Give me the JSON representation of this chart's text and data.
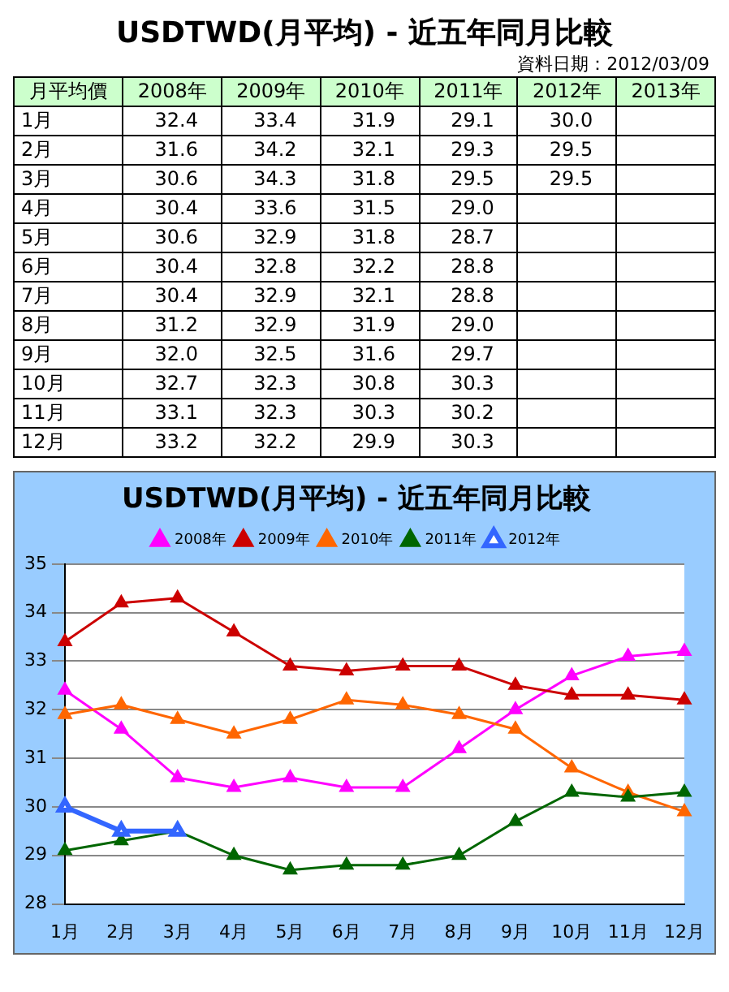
{
  "chart_data": [
    {
      "type": "heatmap",
      "title": "USDTWD(月平均) - 近五年同月比較",
      "subtitle": "資料日期：2012/03/09",
      "ylabel": "月平均價",
      "data_labels": true,
      "categories": [
        "2008年",
        "2009年",
        "2010年",
        "2011年",
        "2012年",
        "2013年"
      ],
      "y_categories": [
        "1月",
        "2月",
        "3月",
        "4月",
        "5月",
        "6月",
        "7月",
        "8月",
        "9月",
        "10月",
        "11月",
        "12月"
      ],
      "cells": [
        [
          32.4,
          33.4,
          31.9,
          29.1,
          30.0,
          null
        ],
        [
          31.6,
          34.2,
          32.1,
          29.3,
          29.5,
          null
        ],
        [
          30.6,
          34.3,
          31.8,
          29.5,
          29.5,
          null
        ],
        [
          30.4,
          33.6,
          31.5,
          29.0,
          null,
          null
        ],
        [
          30.6,
          32.9,
          31.8,
          28.7,
          null,
          null
        ],
        [
          30.4,
          32.8,
          32.2,
          28.8,
          null,
          null
        ],
        [
          30.4,
          32.9,
          32.1,
          28.8,
          null,
          null
        ],
        [
          31.2,
          32.9,
          31.9,
          29.0,
          null,
          null
        ],
        [
          32.0,
          32.5,
          31.6,
          29.7,
          null,
          null
        ],
        [
          32.7,
          32.3,
          30.8,
          30.3,
          null,
          null
        ],
        [
          33.1,
          32.3,
          30.3,
          30.2,
          null,
          null
        ],
        [
          33.2,
          32.2,
          29.9,
          30.3,
          null,
          null
        ]
      ],
      "cell_labels": [
        [
          "32.4",
          "33.4",
          "31.9",
          "29.1",
          "30.0",
          null
        ],
        [
          "31.6",
          "34.2",
          "32.1",
          "29.3",
          "29.5",
          null
        ],
        [
          "30.6",
          "34.3",
          "31.8",
          "29.5",
          "29.5",
          null
        ],
        [
          "30.4",
          "33.6",
          "31.5",
          "29.0",
          null,
          null
        ],
        [
          "30.6",
          "32.9",
          "31.8",
          "28.7",
          null,
          null
        ],
        [
          "30.4",
          "32.8",
          "32.2",
          "28.8",
          null,
          null
        ],
        [
          "30.4",
          "32.9",
          "32.1",
          "28.8",
          null,
          null
        ],
        [
          "31.2",
          "32.9",
          "31.9",
          "29.0",
          null,
          null
        ],
        [
          "32.0",
          "32.5",
          "31.6",
          "29.7",
          null,
          null
        ],
        [
          "32.7",
          "32.3",
          "30.8",
          "30.3",
          null,
          null
        ],
        [
          "33.1",
          "32.3",
          "30.3",
          "30.2",
          null,
          null
        ],
        [
          "33.2",
          "32.2",
          "29.9",
          "30.3",
          null,
          null
        ]
      ]
    },
    {
      "type": "line",
      "title": "USDTWD(月平均) - 近五年同月比較",
      "categories": [
        "1月",
        "2月",
        "3月",
        "4月",
        "5月",
        "6月",
        "7月",
        "8月",
        "9月",
        "10月",
        "11月",
        "12月"
      ],
      "series": [
        {
          "name": "2008年",
          "color": "#ff00ff",
          "values": [
            32.4,
            31.6,
            30.6,
            30.4,
            30.6,
            30.4,
            30.4,
            31.2,
            32.0,
            32.7,
            33.1,
            33.2
          ]
        },
        {
          "name": "2009年",
          "color": "#cc0000",
          "values": [
            33.4,
            34.2,
            34.3,
            33.6,
            32.9,
            32.8,
            32.9,
            32.9,
            32.5,
            32.3,
            32.3,
            32.2
          ]
        },
        {
          "name": "2010年",
          "color": "#ff6600",
          "values": [
            31.9,
            32.1,
            31.8,
            31.5,
            31.8,
            32.2,
            32.1,
            31.9,
            31.6,
            30.8,
            30.3,
            29.9
          ]
        },
        {
          "name": "2011年",
          "color": "#006600",
          "values": [
            29.1,
            29.3,
            29.5,
            29.0,
            28.7,
            28.8,
            28.8,
            29.0,
            29.7,
            30.3,
            30.2,
            30.3
          ]
        },
        {
          "name": "2012年",
          "color": "#3366ff",
          "values": [
            30.0,
            29.5,
            29.5,
            null,
            null,
            null,
            null,
            null,
            null,
            null,
            null,
            null
          ]
        }
      ],
      "ylim": [
        28,
        35
      ],
      "yticks": [
        28,
        29,
        30,
        31,
        32,
        33,
        34,
        35
      ],
      "grid": "y",
      "legend": "top",
      "marker": "triangle",
      "line_style": "solid"
    }
  ]
}
